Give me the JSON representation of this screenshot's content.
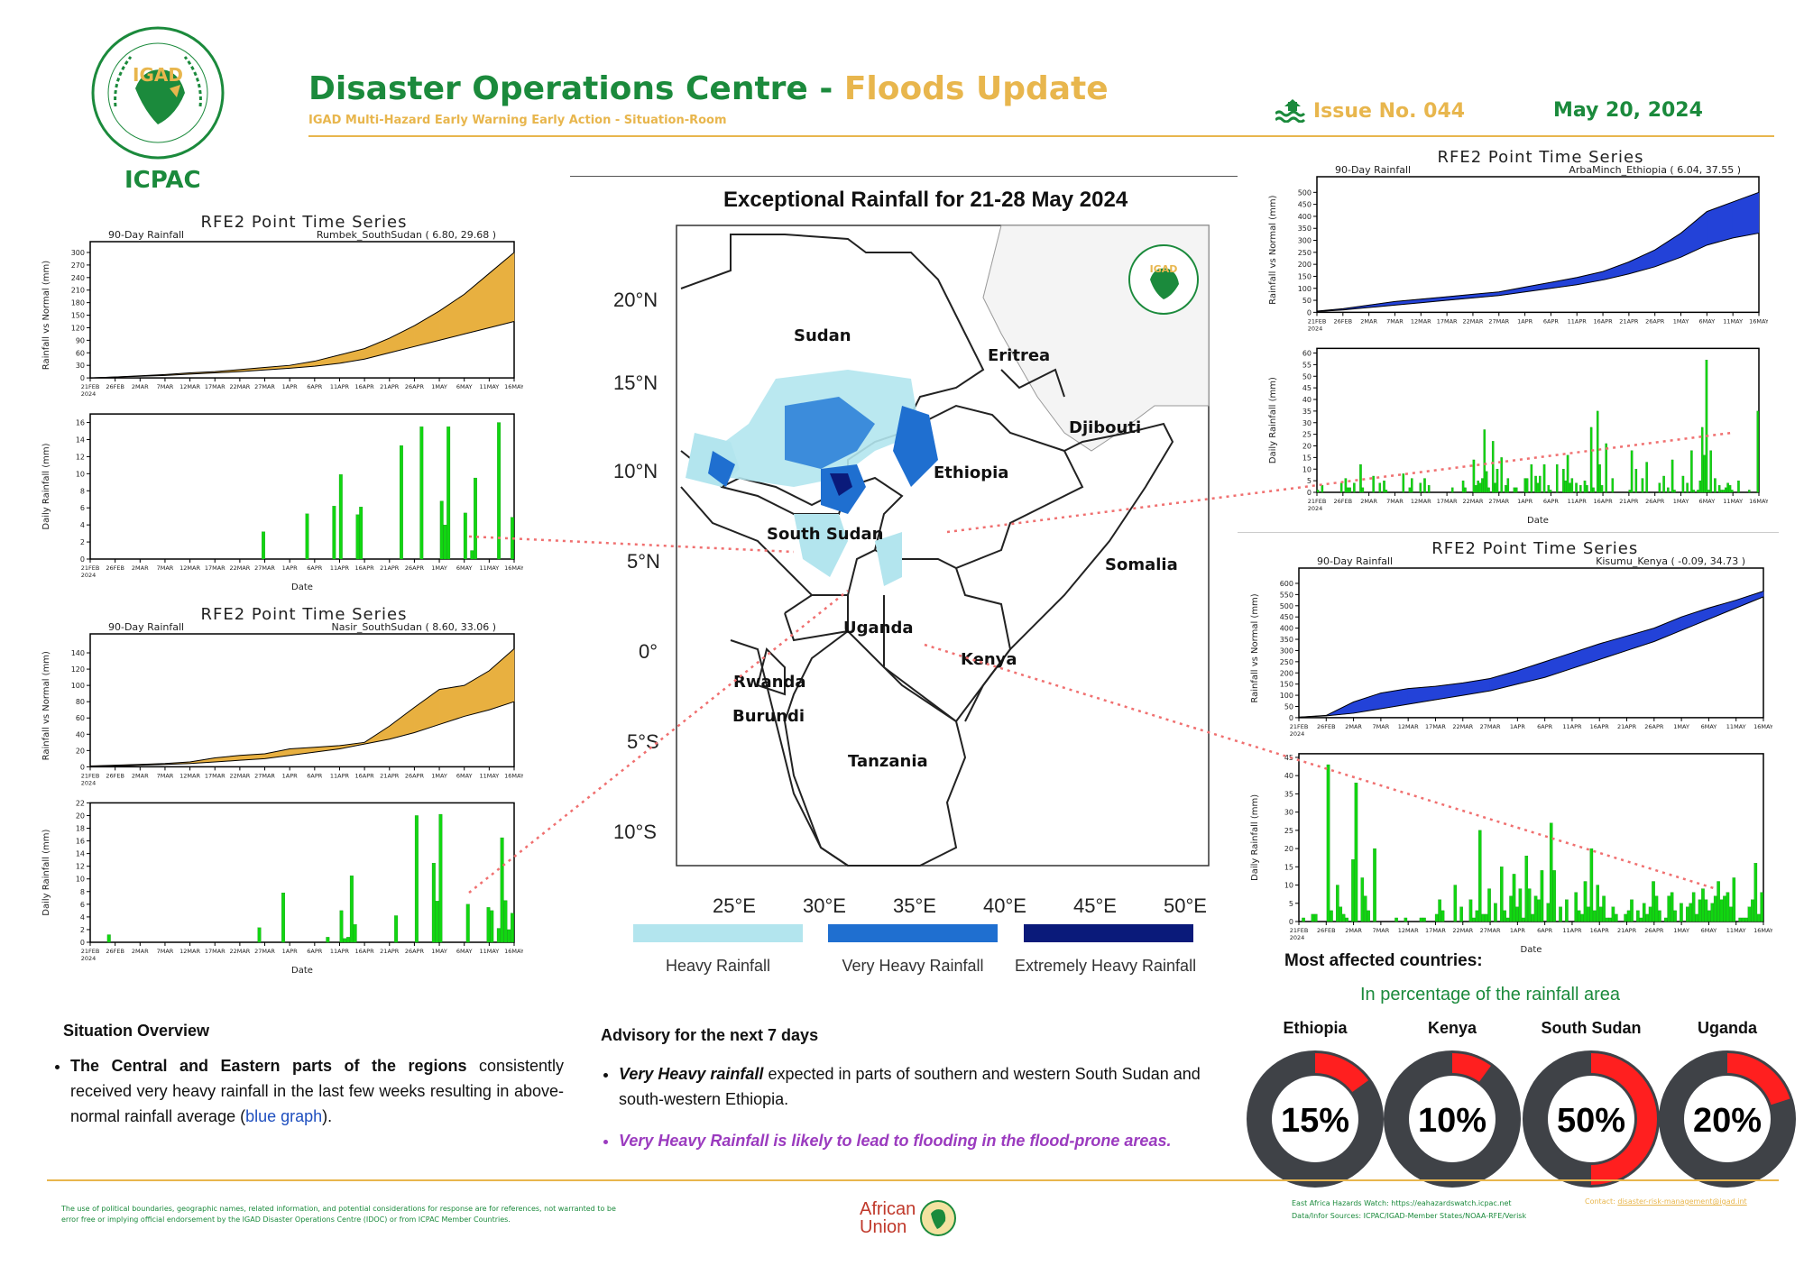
{
  "header": {
    "org": "ICPAC",
    "logo_text": "IGAD",
    "title_main": "Disaster Operations Centre - ",
    "title_accent": "Floods Update",
    "subtitle": "IGAD Multi-Hazard Early Warning Early Action - Situation-Room",
    "issue": "Issue No. 044",
    "date": "May 20, 2024"
  },
  "map": {
    "title": "Exceptional Rainfall for 21-28 May 2024",
    "lat_labels": [
      "20°N",
      "15°N",
      "10°N",
      "5°N",
      "0°",
      "5°S",
      "10°S"
    ],
    "lon_labels": [
      "25°E",
      "30°E",
      "35°E",
      "40°E",
      "45°E",
      "50°E"
    ],
    "countries": [
      "Sudan",
      "Eritrea",
      "Djibouti",
      "Ethiopia",
      "South Sudan",
      "Somalia",
      "Uganda",
      "Kenya",
      "Rwanda",
      "Burundi",
      "Tanzania"
    ],
    "legend": [
      {
        "label": "Heavy Rainfall",
        "color": "#b3e5ee"
      },
      {
        "label": "Very Heavy Rainfall",
        "color": "#1f6fd0"
      },
      {
        "label": "Extremely Heavy Rainfall",
        "color": "#0a1a7a"
      }
    ]
  },
  "chart_data": [
    {
      "type": "area",
      "panel": "RFE2 Point Time Series",
      "series_title": "90-Day Rainfall",
      "station": "Rumbek_SouthSudan ( 6.80, 29.68 )",
      "ylabel": "Rainfall vs Normal (mm)",
      "ylim": [
        0,
        300
      ],
      "yticks": [
        0,
        30,
        60,
        90,
        120,
        150,
        180,
        210,
        240,
        270,
        300
      ],
      "x": [
        "21FEB",
        "26FEB",
        "2MAR",
        "7MAR",
        "12MAR",
        "17MAR",
        "22MAR",
        "27MAR",
        "1APR",
        "6APR",
        "11APR",
        "16APR",
        "21APR",
        "26APR",
        "1MAY",
        "6MAY",
        "11MAY",
        "16MAY"
      ],
      "rainfall": [
        0,
        2,
        5,
        8,
        12,
        15,
        20,
        25,
        30,
        40,
        55,
        70,
        95,
        125,
        160,
        200,
        250,
        300
      ],
      "normal": [
        0,
        2,
        4,
        6,
        9,
        12,
        15,
        19,
        23,
        28,
        35,
        45,
        60,
        75,
        90,
        105,
        120,
        135
      ],
      "color_above": "#e8b040",
      "color_below": "#2342d8"
    },
    {
      "type": "bar",
      "ylabel": "Daily Rainfall (mm)",
      "xlabel": "Date",
      "ylim": [
        0,
        17
      ],
      "yticks": [
        0,
        2,
        4,
        6,
        8,
        10,
        12,
        14,
        16
      ],
      "x_ticks": [
        "21FEB\n2024",
        "26FEB",
        "2MAR",
        "7MAR",
        "12MAR",
        "17MAR",
        "22MAR",
        "27MAR",
        "1APR",
        "6APR",
        "11APR",
        "16APR",
        "21APR",
        "26APR",
        "1MAY",
        "6MAY",
        "11MAY",
        "16MAY"
      ],
      "values": [
        0,
        0,
        0,
        0,
        0,
        0,
        0,
        0,
        0,
        0,
        0,
        0,
        0,
        0,
        0,
        0,
        0,
        0,
        0,
        0,
        0,
        0,
        0,
        0,
        0,
        0,
        0,
        0,
        0,
        0,
        0,
        0,
        0,
        0,
        0,
        0,
        0,
        0,
        0,
        0,
        0,
        0,
        0,
        0,
        0,
        0,
        0,
        0,
        0,
        0,
        0,
        3.2,
        0,
        0,
        0,
        0,
        0,
        0,
        0,
        0,
        0,
        0,
        0,
        0,
        5.3,
        0,
        0,
        0,
        0,
        0,
        0,
        0,
        6.2,
        0,
        9.9,
        0,
        0,
        0,
        0,
        5.2,
        6.1,
        0,
        0,
        0,
        0,
        0,
        0,
        0,
        0,
        0,
        0,
        0,
        13.3,
        0,
        0,
        0,
        0,
        0,
        15.5,
        0,
        0,
        0,
        0,
        0,
        6.8,
        4.0,
        15.5,
        0,
        0,
        0,
        0,
        5.4,
        0,
        1.0,
        9.5,
        0,
        0,
        0,
        0,
        0,
        0,
        16.0,
        0,
        0,
        0,
        4.9
      ],
      "color": "#11d611"
    },
    {
      "type": "area",
      "panel": "RFE2 Point Time Series",
      "series_title": "90-Day Rainfall",
      "station": "Nasir_SouthSudan ( 8.60, 33.06 )",
      "ylabel": "Rainfall vs Normal (mm)",
      "ylim": [
        0,
        150
      ],
      "yticks": [
        0,
        20,
        40,
        60,
        80,
        100,
        120,
        140
      ],
      "x": [
        "21FEB",
        "26FEB",
        "2MAR",
        "7MAR",
        "12MAR",
        "17MAR",
        "22MAR",
        "27MAR",
        "1APR",
        "6APR",
        "11APR",
        "16APR",
        "21APR",
        "26APR",
        "1MAY",
        "6MAY",
        "11MAY",
        "16MAY"
      ],
      "rainfall": [
        1,
        2,
        3,
        4,
        6,
        11,
        14,
        16,
        22,
        24,
        26,
        30,
        50,
        73,
        95,
        100,
        118,
        145
      ],
      "normal": [
        0,
        1,
        2,
        3,
        4,
        6,
        8,
        10,
        14,
        18,
        22,
        28,
        34,
        42,
        52,
        62,
        70,
        80
      ],
      "color_above": "#e8b040",
      "color_below": "#2342d8"
    },
    {
      "type": "bar",
      "ylabel": "Daily Rainfall (mm)",
      "xlabel": "Date",
      "ylim": [
        0,
        22
      ],
      "yticks": [
        0,
        2,
        4,
        6,
        8,
        10,
        12,
        14,
        16,
        18,
        20,
        22
      ],
      "x_ticks": [
        "21FEB\n2024",
        "26FEB",
        "2MAR",
        "7MAR",
        "12MAR",
        "17MAR",
        "22MAR",
        "27MAR",
        "1APR",
        "6APR",
        "11APR",
        "16APR",
        "21APR",
        "26APR",
        "1MAY",
        "6MAY",
        "11MAY",
        "16MAY"
      ],
      "values": [
        0,
        0,
        0,
        0,
        0,
        1.2,
        0,
        0,
        0,
        0,
        0,
        0,
        0,
        0,
        0,
        0,
        0,
        0,
        0,
        0,
        0,
        0,
        0,
        0,
        0,
        0,
        0,
        0,
        0,
        0,
        0,
        0,
        0,
        0,
        0,
        0,
        0,
        0,
        0,
        0,
        0,
        0,
        0,
        0,
        0,
        0,
        0,
        0,
        0,
        2.3,
        0,
        0,
        0,
        0,
        0,
        0,
        7.8,
        0,
        0,
        0,
        0,
        0,
        0,
        0,
        0,
        0,
        0,
        0,
        0,
        0.8,
        0,
        0,
        0,
        5.0,
        0.6,
        0.8,
        10.5,
        2.8,
        0,
        0,
        0,
        0,
        0,
        0,
        0,
        0,
        0,
        0,
        0,
        4.2,
        0,
        0,
        0,
        0,
        0,
        20.0,
        0,
        0,
        0,
        0,
        12.5,
        6.5,
        20.2,
        0,
        0,
        0,
        0,
        0,
        0,
        0,
        6.0,
        0,
        0,
        0,
        0,
        0,
        5.5,
        5.0,
        0,
        2.2,
        16.5,
        6.6,
        2.0,
        4.6
      ],
      "color": "#11d611"
    },
    {
      "type": "area",
      "panel": "RFE2 Point Time Series",
      "series_title": "90-Day Rainfall",
      "station": "ArbaMinch_Ethiopia ( 6.04, 37.55 )",
      "ylabel": "Rainfall vs Normal (mm)",
      "ylim": [
        0,
        520
      ],
      "yticks": [
        0,
        50,
        100,
        150,
        200,
        250,
        300,
        350,
        400,
        450,
        500
      ],
      "x": [
        "21FEB",
        "26FEB",
        "2MAR",
        "7MAR",
        "12MAR",
        "17MAR",
        "22MAR",
        "27MAR",
        "1APR",
        "6APR",
        "11APR",
        "16APR",
        "21APR",
        "26APR",
        "1MAY",
        "6MAY",
        "11MAY",
        "16MAY"
      ],
      "rainfall": [
        5,
        15,
        30,
        45,
        55,
        65,
        75,
        85,
        105,
        125,
        145,
        170,
        210,
        260,
        330,
        420,
        460,
        500
      ],
      "normal": [
        3,
        10,
        20,
        30,
        40,
        50,
        60,
        70,
        85,
        100,
        115,
        135,
        160,
        190,
        230,
        280,
        310,
        330
      ],
      "color_above": "#2342d8",
      "color_below": "#e8b040"
    },
    {
      "type": "bar",
      "ylabel": "Daily Rainfall (mm)",
      "xlabel": "Date",
      "ylim": [
        0,
        62
      ],
      "yticks": [
        0,
        5,
        10,
        15,
        20,
        25,
        30,
        35,
        40,
        45,
        50,
        55,
        60
      ],
      "x_ticks": [
        "21FEB\n2024",
        "26FEB",
        "2MAR",
        "7MAR",
        "12MAR",
        "17MAR",
        "22MAR",
        "27MAR",
        "1APR",
        "6APR",
        "11APR",
        "16APR",
        "21APR",
        "26APR",
        "1MAY",
        "6MAY",
        "11MAY",
        "16MAY"
      ],
      "values": [
        1,
        0,
        3,
        0,
        0,
        0,
        0,
        0,
        0,
        0,
        0,
        4,
        0,
        6,
        2,
        2,
        0,
        4,
        0,
        0,
        12,
        2,
        0,
        0,
        0,
        0,
        7,
        0,
        0,
        4,
        0,
        5,
        1,
        0,
        0,
        0,
        0,
        0,
        0,
        0,
        8,
        0,
        0,
        2,
        6,
        0,
        0,
        0,
        4,
        0,
        6,
        0,
        3,
        0,
        0,
        0,
        0,
        0,
        0,
        0,
        0,
        0,
        0,
        2,
        0,
        0,
        0,
        0,
        5,
        2,
        0,
        0,
        0,
        14,
        3,
        5,
        4,
        6,
        27,
        9,
        2,
        0,
        22,
        4,
        10,
        0,
        15,
        0,
        3,
        6,
        0,
        0,
        2,
        2,
        0,
        0,
        0,
        6,
        6,
        0,
        12,
        0,
        7,
        4,
        7,
        0,
        12,
        0,
        3,
        1,
        0,
        0,
        12,
        0,
        0,
        10,
        5,
        16,
        4,
        6,
        0,
        4,
        0,
        3,
        0,
        5,
        3,
        0,
        28,
        2,
        0,
        35,
        12,
        3,
        0,
        21,
        0,
        0,
        6,
        0,
        0,
        0,
        0,
        0,
        0,
        0,
        1,
        18,
        0,
        10,
        0,
        0,
        6,
        0,
        13,
        0,
        0,
        0,
        0,
        0,
        4,
        0,
        7,
        0,
        2,
        0,
        14,
        1,
        0,
        0,
        0,
        7,
        0,
        4,
        0,
        18,
        1,
        0,
        1,
        5,
        28,
        16,
        57,
        1,
        18,
        0,
        6,
        0,
        3,
        1,
        1,
        2,
        4,
        3,
        1,
        0,
        0,
        5,
        0,
        0,
        0,
        0,
        1,
        0,
        0,
        0,
        35
      ],
      "color": "#11d611"
    },
    {
      "type": "area",
      "panel": "RFE2 Point Time Series",
      "series_title": "90-Day Rainfall",
      "station": "Kisumu_Kenya ( -0.09, 34.73 )",
      "ylabel": "Rainfall vs Normal (mm)",
      "ylim": [
        0,
        620
      ],
      "yticks": [
        0,
        50,
        100,
        150,
        200,
        250,
        300,
        350,
        400,
        450,
        500,
        550,
        600
      ],
      "x": [
        "21FEB",
        "26FEB",
        "2MAR",
        "7MAR",
        "12MAR",
        "17MAR",
        "22MAR",
        "27MAR",
        "1APR",
        "6APR",
        "11APR",
        "16APR",
        "21APR",
        "26APR",
        "1MAY",
        "6MAY",
        "11MAY",
        "16MAY"
      ],
      "rainfall": [
        2,
        10,
        70,
        110,
        130,
        140,
        155,
        175,
        210,
        250,
        290,
        330,
        365,
        400,
        450,
        490,
        525,
        565
      ],
      "normal": [
        2,
        8,
        20,
        40,
        60,
        80,
        100,
        120,
        150,
        180,
        220,
        260,
        300,
        340,
        390,
        440,
        490,
        540
      ],
      "color_above": "#2342d8",
      "color_below": "#e8b040"
    },
    {
      "type": "bar",
      "ylabel": "Daily Rainfall (mm)",
      "xlabel": "Date",
      "ylim": [
        0,
        46
      ],
      "yticks": [
        0,
        5,
        10,
        15,
        20,
        25,
        30,
        35,
        40,
        45
      ],
      "x_ticks": [
        "21FEB\n2024",
        "26FEB",
        "2MAR",
        "7MAR",
        "12MAR",
        "17MAR",
        "22MAR",
        "27MAR",
        "1APR",
        "6APR",
        "11APR",
        "16APR",
        "21APR",
        "26APR",
        "1MAY",
        "6MAY",
        "11MAY",
        "16MAY"
      ],
      "values": [
        0,
        1,
        0,
        0,
        2,
        2,
        0,
        0,
        0,
        43,
        3,
        0,
        10,
        4,
        2,
        1,
        0,
        17,
        38,
        0,
        12,
        7,
        3,
        0,
        20,
        0,
        0,
        0,
        0,
        0,
        0,
        1,
        0,
        0,
        1,
        0,
        0,
        0,
        0,
        1,
        1,
        0,
        0,
        0,
        2,
        6,
        3,
        0,
        0,
        0,
        10,
        0,
        4,
        0,
        0,
        6,
        1,
        3,
        25,
        2,
        2,
        9,
        0,
        5,
        0,
        15,
        3,
        1,
        7,
        13,
        4,
        9,
        1,
        18,
        9,
        2,
        7,
        6,
        14,
        0,
        5,
        27,
        14,
        0,
        4,
        0,
        6,
        0,
        0,
        8,
        3,
        2,
        11,
        4,
        20,
        3,
        10,
        4,
        7,
        1,
        1,
        4,
        2,
        0,
        0,
        2,
        3,
        6,
        0,
        3,
        1,
        5,
        2,
        4,
        11,
        7,
        3,
        0,
        1,
        7,
        8,
        3,
        0,
        5,
        0,
        4,
        5,
        8,
        2,
        6,
        9,
        6,
        3,
        5,
        7,
        11,
        6,
        7,
        8,
        4,
        12,
        0,
        1,
        1,
        1,
        4,
        6,
        16,
        2,
        8
      ]
    }
  ],
  "panels": {
    "rfe_title": "RFE2 Point Time Series",
    "rfe90": "90-Day Rainfall",
    "ylab_top": "Rainfall vs Normal (mm)",
    "ylab_bot": "Daily Rainfall (mm)",
    "xlab": "Date",
    "year": "2024"
  },
  "situation": {
    "title": "Situation Overview",
    "bold_lead": "The Central and Eastern parts of the regions",
    "text": " consistently received very heavy rainfall in the last few weeks resulting in above-normal rainfall average (",
    "link": "blue graph",
    "tail": ")."
  },
  "advisory": {
    "title": "Advisory for the next 7 days",
    "item1_bold": "Very Heavy rainfall",
    "item1_text": "  expected in parts of southern and western South Sudan and south-western Ethiopia.",
    "item2": "Very Heavy Rainfall is likely to lead to flooding in the flood-prone areas."
  },
  "affected": {
    "title": "Most affected countries:",
    "subtitle": "In percentage of the rainfall area",
    "items": [
      {
        "country": "Ethiopia",
        "pct": 15,
        "label": "15%"
      },
      {
        "country": "Kenya",
        "pct": 10,
        "label": "10%"
      },
      {
        "country": "South Sudan",
        "pct": 50,
        "label": "50%"
      },
      {
        "country": "Uganda",
        "pct": 20,
        "label": "20%"
      }
    ],
    "ring_color": "#3f4247",
    "fill_color": "#ff1f1f"
  },
  "footer": {
    "disclaimer": "The use of political boundaries, geographic names, related information, and potential considerations for response are for references, not warranted to be error free or implying official endorsement by the IGAD Disaster Operations Centre (IDOC) or from ICPAC Member Countries.",
    "au_line1": "African",
    "au_line2": "Union",
    "link1": "East Africa Hazards Watch: https://eahazardswatch.icpac.net",
    "link2": "Data/Infor Sources:  ICPAC/IGAD-Member States/NOAA-RFE/Verisk",
    "contact_label": "Contact: ",
    "contact_email": "disaster-risk-management@igad.int"
  }
}
